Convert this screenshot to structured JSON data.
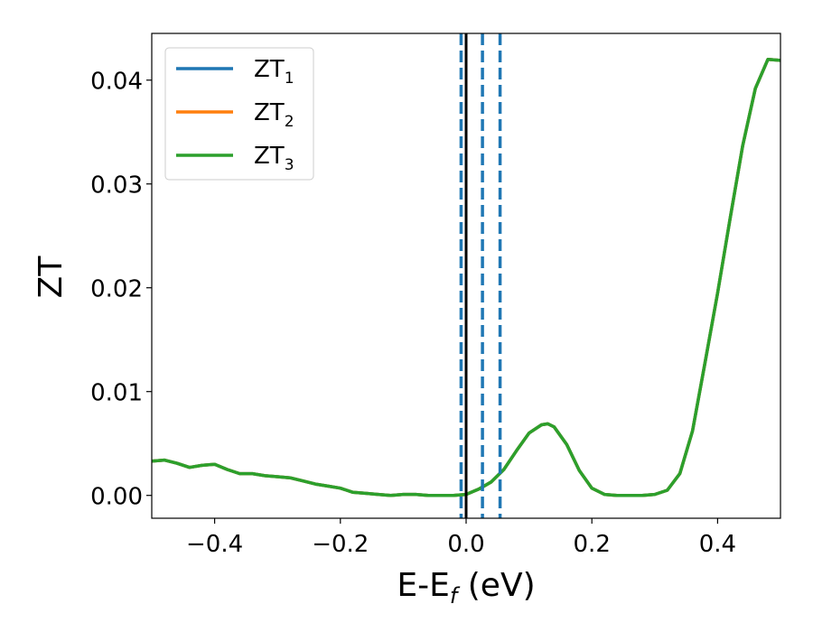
{
  "chart_data": {
    "type": "line",
    "xlabel_base": "E-E",
    "xlabel_sub": "f",
    "xlabel_unit": " (eV)",
    "ylabel": "ZT",
    "xlim": [
      -0.5,
      0.5
    ],
    "ylim": [
      -0.0022,
      0.0445
    ],
    "xticks": [
      -0.4,
      -0.2,
      0.0,
      0.2,
      0.4
    ],
    "xtick_labels": [
      "−0.4",
      "−0.2",
      "0.0",
      "0.2",
      "0.4"
    ],
    "yticks": [
      0.0,
      0.01,
      0.02,
      0.03,
      0.04
    ],
    "ytick_labels": [
      "0.00",
      "0.01",
      "0.02",
      "0.03",
      "0.04"
    ],
    "grid": false,
    "legend_position": "top-left",
    "colors": {
      "zt1": "#1f77b4",
      "zt2": "#ff7f0e",
      "zt3": "#2ca02c",
      "fermi": "#000000",
      "dashed": "#1f77b4"
    },
    "series": [
      {
        "name_base": "ZT",
        "name_sub": "1",
        "color": "#1f77b4"
      },
      {
        "name_base": "ZT",
        "name_sub": "2",
        "color": "#ff7f0e"
      },
      {
        "name_base": "ZT",
        "name_sub": "3",
        "color": "#2ca02c"
      }
    ],
    "x": [
      -0.5,
      -0.48,
      -0.46,
      -0.44,
      -0.42,
      -0.4,
      -0.38,
      -0.36,
      -0.34,
      -0.32,
      -0.3,
      -0.28,
      -0.26,
      -0.24,
      -0.22,
      -0.2,
      -0.18,
      -0.16,
      -0.14,
      -0.12,
      -0.1,
      -0.08,
      -0.06,
      -0.04,
      -0.02,
      0.0,
      0.02,
      0.04,
      0.06,
      0.08,
      0.1,
      0.12,
      0.13,
      0.14,
      0.16,
      0.18,
      0.2,
      0.22,
      0.24,
      0.26,
      0.28,
      0.3,
      0.32,
      0.34,
      0.36,
      0.38,
      0.4,
      0.42,
      0.44,
      0.46,
      0.48,
      0.5
    ],
    "y": [
      0.0033,
      0.0034,
      0.0031,
      0.0027,
      0.0029,
      0.003,
      0.0025,
      0.0021,
      0.0021,
      0.0019,
      0.0018,
      0.0017,
      0.0014,
      0.0011,
      0.0009,
      0.0007,
      0.0003,
      0.0002,
      0.0001,
      0.0,
      0.0001,
      0.0001,
      0.0,
      0.0,
      0.0,
      0.0001,
      0.0006,
      0.0013,
      0.0025,
      0.0043,
      0.006,
      0.0068,
      0.0069,
      0.0066,
      0.0049,
      0.0024,
      0.0007,
      0.0001,
      0.0,
      0.0,
      0.0,
      0.0001,
      0.0005,
      0.0021,
      0.0062,
      0.0128,
      0.0195,
      0.0267,
      0.0337,
      0.0392,
      0.042,
      0.0419
    ],
    "vlines": [
      {
        "x": 0.0,
        "style": "solid",
        "color": "#000000"
      },
      {
        "x": -0.008,
        "style": "dashed",
        "color": "#1f77b4"
      },
      {
        "x": 0.026,
        "style": "dashed",
        "color": "#1f77b4"
      },
      {
        "x": 0.054,
        "style": "dashed",
        "color": "#1f77b4"
      }
    ]
  }
}
